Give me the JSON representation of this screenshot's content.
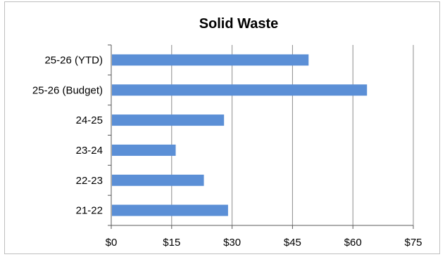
{
  "chart_data": {
    "type": "bar",
    "orientation": "horizontal",
    "title": "Solid Waste",
    "xlabel": "",
    "ylabel": "",
    "categories": [
      "25-26 (YTD)",
      "25-26 (Budget)",
      "24-25",
      "23-24",
      "22-23",
      "21-22"
    ],
    "values": [
      49,
      63.5,
      28,
      16,
      23,
      29
    ],
    "xlim": [
      0,
      75
    ],
    "x_ticks": [
      0,
      15,
      30,
      45,
      60,
      75
    ],
    "x_tick_labels": [
      "$0",
      "$15",
      "$30",
      "$45",
      "$60",
      "$75"
    ],
    "grid": "vertical",
    "legend": "none",
    "bar_color": "#5B8FD6",
    "grid_color": "#8c8c8c"
  }
}
